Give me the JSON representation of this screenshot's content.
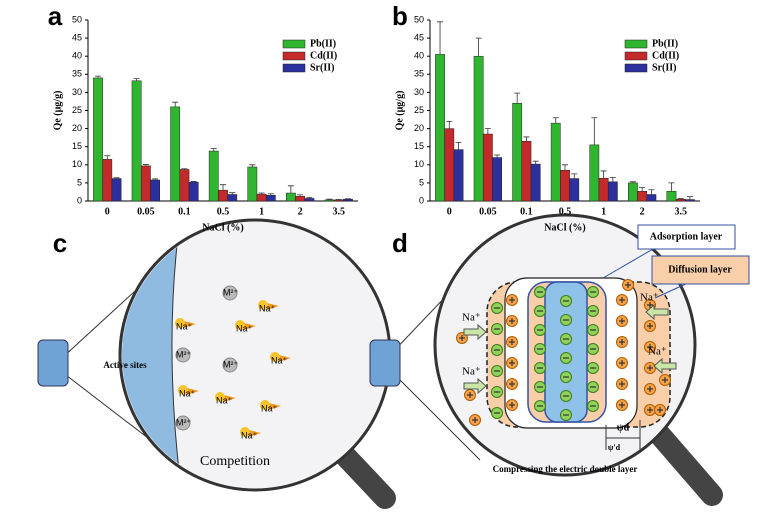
{
  "chart_data": [
    {
      "type": "bar",
      "panel": "a",
      "x_label": "NaCl (%)",
      "y_label": "Qe (μg/g)",
      "categories": [
        "0",
        "0.05",
        "0.1",
        "0.5",
        "1",
        "2",
        "3.5"
      ],
      "ylim": [
        0,
        50
      ],
      "yticks": [
        0,
        5,
        10,
        15,
        20,
        25,
        30,
        35,
        40,
        45,
        50
      ],
      "legend": "upper right",
      "series": [
        {
          "name": "Pb(II)",
          "color": "#2fb52f",
          "values": [
            34,
            33.2,
            26,
            13.8,
            9.4,
            2.2,
            0.3
          ],
          "errors": [
            0.5,
            0.6,
            1.3,
            0.7,
            0.6,
            2,
            0.2
          ]
        },
        {
          "name": "Cd(II)",
          "color": "#c42a2c",
          "values": [
            11.5,
            9.7,
            8.7,
            3,
            1.9,
            1.3,
            0.3
          ],
          "errors": [
            1,
            0.4,
            0.2,
            1.5,
            0.3,
            0.4,
            0.1
          ]
        },
        {
          "name": "Sr(II)",
          "color": "#2b309c",
          "values": [
            6.2,
            5.8,
            5.2,
            1.8,
            1.6,
            0.7,
            0.5
          ],
          "errors": [
            0.2,
            0.3,
            0.2,
            0.5,
            0.4,
            0.3,
            0.1
          ]
        }
      ]
    },
    {
      "type": "bar",
      "panel": "b",
      "x_label": "NaCl (%)",
      "y_label": "Qe (μg/g)",
      "categories": [
        "0",
        "0.05",
        "0.1",
        "0.5",
        "1",
        "2",
        "3.5"
      ],
      "ylim": [
        0,
        50
      ],
      "yticks": [
        0,
        5,
        10,
        15,
        20,
        25,
        30,
        35,
        40,
        45,
        50
      ],
      "legend": "upper right",
      "series": [
        {
          "name": "Pb(II)",
          "color": "#2fb52f",
          "values": [
            40.5,
            40,
            27,
            21.5,
            15.5,
            5,
            2.7
          ],
          "errors": [
            9,
            5,
            2.8,
            1.5,
            7.5,
            0.3,
            2.3
          ]
        },
        {
          "name": "Cd(II)",
          "color": "#c42a2c",
          "values": [
            20,
            18.5,
            16.5,
            8.5,
            6.3,
            2.7,
            0.5
          ],
          "errors": [
            2,
            1.5,
            1.2,
            1.5,
            2,
            1,
            0.2
          ]
        },
        {
          "name": "Sr(II)",
          "color": "#2b309c",
          "values": [
            14.2,
            12,
            10.2,
            6.2,
            5.3,
            1.8,
            0.4
          ],
          "errors": [
            2,
            0.7,
            0.8,
            1.3,
            1.2,
            1.3,
            0.8
          ]
        }
      ]
    }
  ],
  "panel_c": {
    "label": "c",
    "active_sites": "Active sites",
    "caption": "Competition",
    "na_ions": [
      "Na⁺",
      "Na⁺",
      "Na⁺",
      "Na⁺",
      "Na⁺",
      "Na⁺",
      "Na⁺",
      "Na⁺"
    ],
    "m_ions": [
      "M²⁺",
      "M²⁺",
      "M²⁺",
      "M²⁺"
    ]
  },
  "panel_d": {
    "label": "d",
    "adsorption_layer": "Adsorption layer",
    "diffusion_layer": "Diffusion layer",
    "na_ions": [
      "Na⁺",
      "Na⁺",
      "Na⁺",
      "Na⁺"
    ],
    "psi_d": "ψd",
    "psi_d_prime": "ψ'd",
    "caption": "Compressing the electric double layer"
  }
}
